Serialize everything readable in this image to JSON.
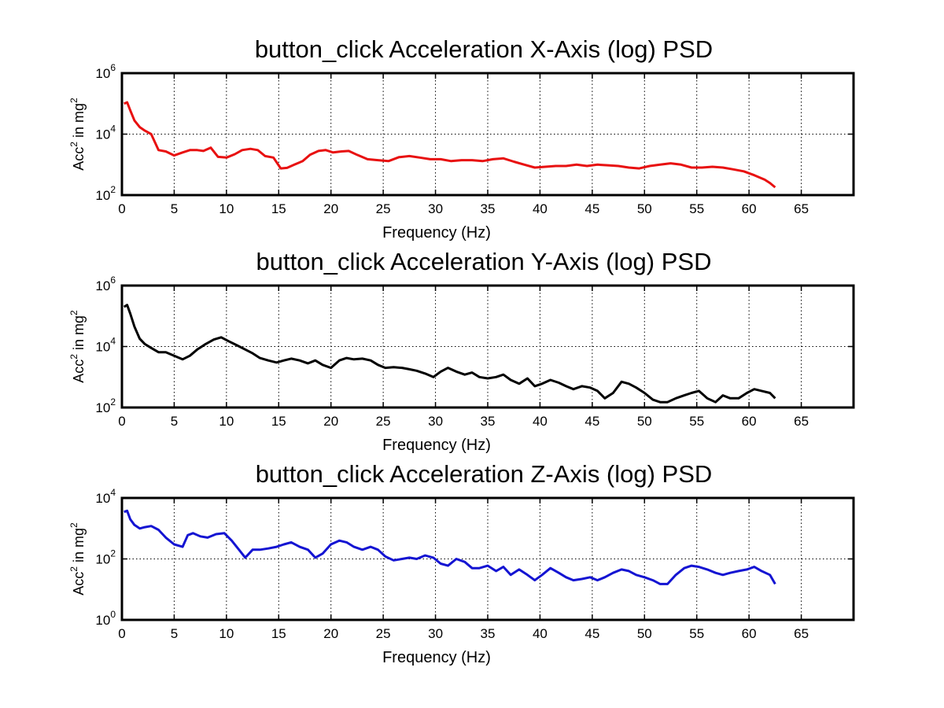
{
  "chart_data": [
    {
      "type": "line",
      "title": "button_click Acceleration X-Axis (log) PSD",
      "xlabel": "Frequency (Hz)",
      "ylabel": {
        "prefix": "Acc",
        "sup1": "2",
        "mid": " in mg",
        "sup2": "2"
      },
      "xlim": [
        0,
        70
      ],
      "xticks": [
        "0",
        "5",
        "10",
        "15",
        "20",
        "25",
        "30",
        "35",
        "40",
        "45",
        "50",
        "55",
        "60",
        "65"
      ],
      "yscale": "log",
      "ylim": [
        100,
        1000000
      ],
      "yticks": [
        {
          "base": "10",
          "exp": "2"
        },
        {
          "base": "10",
          "exp": "4"
        },
        {
          "base": "10",
          "exp": "6"
        }
      ],
      "grid": true,
      "color": "#e81010",
      "series": [
        {
          "x": [
            0.2,
            0.5,
            0.8,
            1.2,
            1.7,
            2.2,
            2.8,
            3.5,
            4.2,
            5.0,
            5.8,
            6.5,
            7.2,
            7.8,
            8.5,
            9.2,
            10.0,
            10.8,
            11.5,
            12.3,
            13.0,
            13.7,
            14.5,
            15.2,
            15.8,
            16.5,
            17.3,
            18.0,
            18.8,
            19.5,
            20.2,
            21.0,
            21.7,
            22.5,
            23.5,
            24.5,
            25.5,
            26.5,
            27.5,
            28.5,
            29.5,
            30.5,
            31.5,
            32.5,
            33.5,
            34.5,
            35.5,
            36.5,
            37.5,
            38.5,
            39.5,
            40.5,
            41.5,
            42.5,
            43.5,
            44.5,
            45.5,
            46.5,
            47.5,
            48.5,
            49.5,
            50.5,
            51.5,
            52.5,
            53.5,
            54.5,
            55.5,
            56.5,
            57.5,
            58.5,
            59.5,
            60.5,
            61.5,
            62.0,
            62.5
          ],
          "y": [
            100000,
            110000,
            60000,
            28000,
            17000,
            13000,
            10000,
            3000,
            2700,
            2000,
            2500,
            3000,
            3000,
            2800,
            3600,
            1800,
            1700,
            2200,
            3000,
            3300,
            3000,
            1900,
            1700,
            750,
            780,
            1000,
            1300,
            2100,
            2800,
            3000,
            2500,
            2700,
            2800,
            2100,
            1500,
            1400,
            1300,
            1750,
            1900,
            1700,
            1500,
            1500,
            1300,
            1400,
            1400,
            1300,
            1500,
            1600,
            1250,
            1000,
            800,
            850,
            900,
            900,
            1000,
            900,
            1000,
            950,
            900,
            800,
            750,
            900,
            1000,
            1100,
            1000,
            800,
            800,
            850,
            800,
            700,
            600,
            450,
            320,
            250,
            180
          ]
        }
      ]
    },
    {
      "type": "line",
      "title": "button_click Acceleration Y-Axis (log) PSD",
      "xlabel": "Frequency (Hz)",
      "ylabel": {
        "prefix": "Acc",
        "sup1": "2",
        "mid": " in mg",
        "sup2": "2"
      },
      "xlim": [
        0,
        70
      ],
      "xticks": [
        "0",
        "5",
        "10",
        "15",
        "20",
        "25",
        "30",
        "35",
        "40",
        "45",
        "50",
        "55",
        "60",
        "65"
      ],
      "yscale": "log",
      "ylim": [
        100,
        1000000
      ],
      "yticks": [
        {
          "base": "10",
          "exp": "2"
        },
        {
          "base": "10",
          "exp": "4"
        },
        {
          "base": "10",
          "exp": "6"
        }
      ],
      "grid": true,
      "color": "#000000",
      "series": [
        {
          "x": [
            0.2,
            0.5,
            0.8,
            1.2,
            1.7,
            2.2,
            2.8,
            3.5,
            4.2,
            5.0,
            5.8,
            6.5,
            7.2,
            8.0,
            8.8,
            9.5,
            10.2,
            11.0,
            11.8,
            12.5,
            13.2,
            14.0,
            14.8,
            15.5,
            16.2,
            17.0,
            17.8,
            18.5,
            19.2,
            20.0,
            20.8,
            21.5,
            22.2,
            23.0,
            23.8,
            24.5,
            25.2,
            26.0,
            26.8,
            27.5,
            28.2,
            29.0,
            29.8,
            30.5,
            31.2,
            32.0,
            32.8,
            33.5,
            34.2,
            35.0,
            35.8,
            36.5,
            37.2,
            38.0,
            38.8,
            39.5,
            40.2,
            41.0,
            41.8,
            42.5,
            43.2,
            44.0,
            44.8,
            45.5,
            46.2,
            47.0,
            47.8,
            48.5,
            49.2,
            50.0,
            50.8,
            51.5,
            52.2,
            53.0,
            53.8,
            54.5,
            55.2,
            56.0,
            56.8,
            57.5,
            58.2,
            59.0,
            59.8,
            60.5,
            61.2,
            62.0,
            62.5
          ],
          "y": [
            200000,
            230000,
            120000,
            45000,
            18000,
            12000,
            9000,
            6500,
            6500,
            5000,
            3800,
            5000,
            8000,
            12000,
            17000,
            20000,
            15000,
            11000,
            8000,
            6000,
            4200,
            3500,
            3000,
            3500,
            4000,
            3500,
            2800,
            3500,
            2500,
            2000,
            3500,
            4200,
            3800,
            4000,
            3500,
            2500,
            2000,
            2100,
            2000,
            1800,
            1600,
            1300,
            1000,
            1500,
            2000,
            1500,
            1200,
            1400,
            1000,
            900,
            1000,
            1200,
            800,
            600,
            900,
            500,
            600,
            800,
            650,
            500,
            400,
            500,
            450,
            350,
            200,
            300,
            700,
            600,
            450,
            300,
            180,
            150,
            150,
            200,
            250,
            300,
            350,
            200,
            150,
            250,
            200,
            200,
            300,
            400,
            350,
            300,
            200
          ]
        }
      ]
    },
    {
      "type": "line",
      "title": "button_click Acceleration Z-Axis (log) PSD",
      "xlabel": "Frequency (Hz)",
      "ylabel": {
        "prefix": "Acc",
        "sup1": "2",
        "mid": " in mg",
        "sup2": "2"
      },
      "xlim": [
        0,
        70
      ],
      "xticks": [
        "0",
        "5",
        "10",
        "15",
        "20",
        "25",
        "30",
        "35",
        "40",
        "45",
        "50",
        "55",
        "60",
        "65"
      ],
      "yscale": "log",
      "ylim": [
        1,
        10000
      ],
      "yticks": [
        {
          "base": "10",
          "exp": "0"
        },
        {
          "base": "10",
          "exp": "2"
        },
        {
          "base": "10",
          "exp": "4"
        }
      ],
      "grid": true,
      "color": "#1414d2",
      "series": [
        {
          "x": [
            0.2,
            0.5,
            0.8,
            1.2,
            1.7,
            2.2,
            2.8,
            3.5,
            4.2,
            5.0,
            5.8,
            6.3,
            6.8,
            7.5,
            8.2,
            9.0,
            9.8,
            10.5,
            11.2,
            11.8,
            12.5,
            13.2,
            14.0,
            14.8,
            15.5,
            16.2,
            17.0,
            17.8,
            18.5,
            19.2,
            20.0,
            20.8,
            21.5,
            22.2,
            23.0,
            23.8,
            24.5,
            25.2,
            26.0,
            26.8,
            27.5,
            28.2,
            29.0,
            29.8,
            30.5,
            31.2,
            32.0,
            32.8,
            33.5,
            34.2,
            35.0,
            35.8,
            36.5,
            37.2,
            38.0,
            38.8,
            39.5,
            40.2,
            41.0,
            41.8,
            42.5,
            43.2,
            44.0,
            44.8,
            45.5,
            46.2,
            47.0,
            47.8,
            48.5,
            49.2,
            50.0,
            50.8,
            51.5,
            52.2,
            53.0,
            53.8,
            54.5,
            55.2,
            56.0,
            56.8,
            57.5,
            58.2,
            59.0,
            59.8,
            60.5,
            61.2,
            62.0,
            62.5
          ],
          "y": [
            3500,
            3800,
            2000,
            1300,
            1000,
            1100,
            1200,
            900,
            500,
            300,
            250,
            600,
            700,
            550,
            500,
            650,
            700,
            400,
            200,
            110,
            200,
            200,
            220,
            250,
            300,
            350,
            250,
            200,
            110,
            150,
            300,
            400,
            350,
            250,
            200,
            250,
            200,
            120,
            90,
            100,
            110,
            100,
            130,
            110,
            70,
            60,
            100,
            80,
            50,
            50,
            60,
            40,
            55,
            30,
            45,
            30,
            20,
            30,
            50,
            35,
            25,
            20,
            22,
            25,
            20,
            25,
            35,
            45,
            40,
            30,
            25,
            20,
            15,
            15,
            30,
            50,
            60,
            55,
            45,
            35,
            30,
            35,
            40,
            45,
            55,
            40,
            30,
            15
          ]
        }
      ]
    }
  ]
}
